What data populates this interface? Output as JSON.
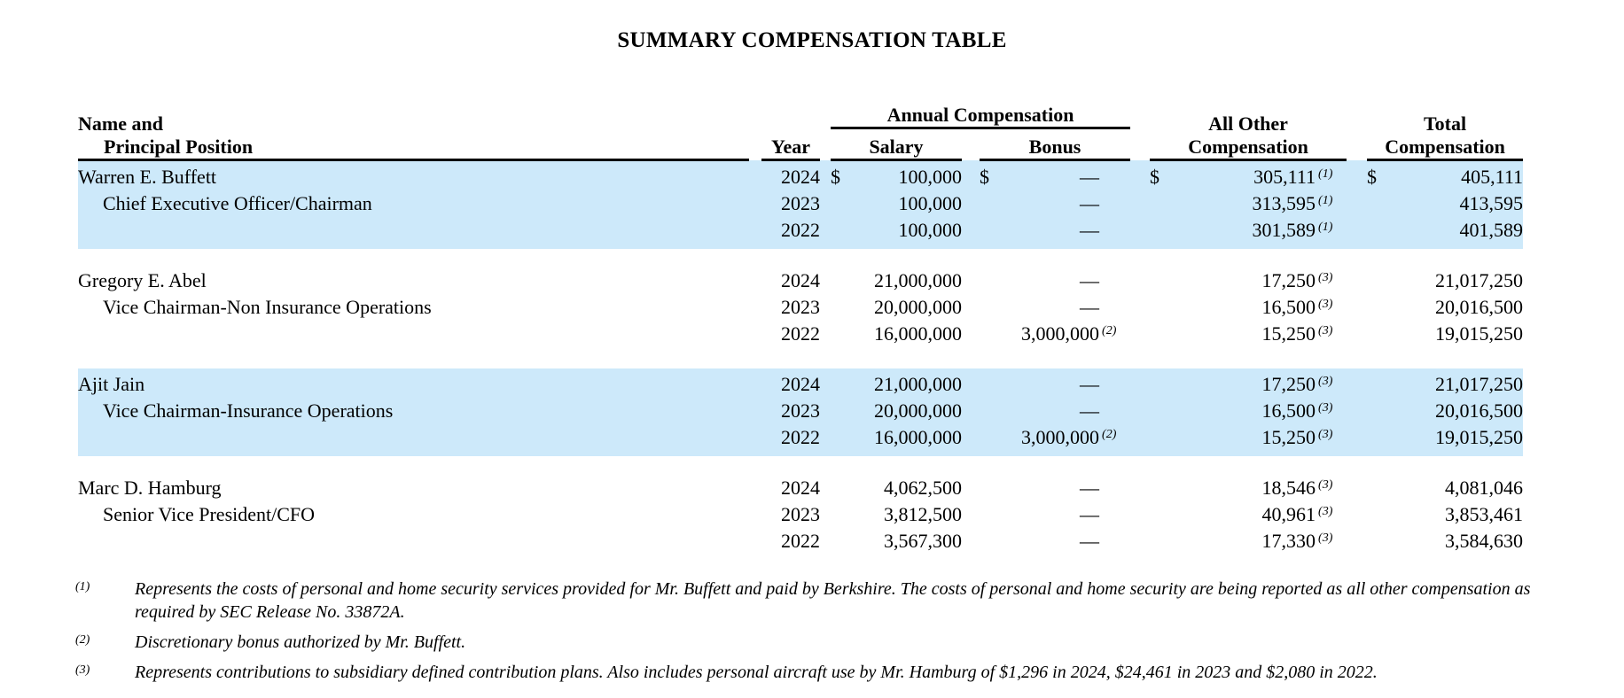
{
  "title": "SUMMARY COMPENSATION TABLE",
  "colors": {
    "highlight": "#cde9fa",
    "text": "#000000",
    "rule": "#000000"
  },
  "table": {
    "headers": {
      "name_line1": "Name and",
      "name_line2": "Principal Position",
      "year": "Year",
      "annual_compensation": "Annual Compensation",
      "salary": "Salary",
      "bonus": "Bonus",
      "all_other_line1": "All Other",
      "all_other_line2": "Compensation",
      "total_line1": "Total",
      "total_line2": "Compensation"
    },
    "groups": [
      {
        "name": "Warren E. Buffett",
        "position": "Chief Executive Officer/Chairman",
        "highlighted": true,
        "rows": [
          {
            "year": "2024",
            "salary_dollar": "$",
            "salary": "100,000",
            "bonus_dollar": "$",
            "bonus": "—",
            "bonus_note": "",
            "all_other_dollar": "$",
            "all_other": "305,111",
            "all_other_note": "(1)",
            "total_dollar": "$",
            "total": "405,111"
          },
          {
            "year": "2023",
            "salary_dollar": "",
            "salary": "100,000",
            "bonus_dollar": "",
            "bonus": "—",
            "bonus_note": "",
            "all_other_dollar": "",
            "all_other": "313,595",
            "all_other_note": "(1)",
            "total_dollar": "",
            "total": "413,595"
          },
          {
            "year": "2022",
            "salary_dollar": "",
            "salary": "100,000",
            "bonus_dollar": "",
            "bonus": "—",
            "bonus_note": "",
            "all_other_dollar": "",
            "all_other": "301,589",
            "all_other_note": "(1)",
            "total_dollar": "",
            "total": "401,589"
          }
        ]
      },
      {
        "name": "Gregory E. Abel",
        "position": "Vice Chairman-Non Insurance Operations",
        "highlighted": false,
        "rows": [
          {
            "year": "2024",
            "salary_dollar": "",
            "salary": "21,000,000",
            "bonus_dollar": "",
            "bonus": "—",
            "bonus_note": "",
            "all_other_dollar": "",
            "all_other": "17,250",
            "all_other_note": "(3)",
            "total_dollar": "",
            "total": "21,017,250"
          },
          {
            "year": "2023",
            "salary_dollar": "",
            "salary": "20,000,000",
            "bonus_dollar": "",
            "bonus": "—",
            "bonus_note": "",
            "all_other_dollar": "",
            "all_other": "16,500",
            "all_other_note": "(3)",
            "total_dollar": "",
            "total": "20,016,500"
          },
          {
            "year": "2022",
            "salary_dollar": "",
            "salary": "16,000,000",
            "bonus_dollar": "",
            "bonus": "3,000,000",
            "bonus_note": "(2)",
            "all_other_dollar": "",
            "all_other": "15,250",
            "all_other_note": "(3)",
            "total_dollar": "",
            "total": "19,015,250"
          }
        ]
      },
      {
        "name": "Ajit Jain",
        "position": "Vice Chairman-Insurance Operations",
        "highlighted": true,
        "rows": [
          {
            "year": "2024",
            "salary_dollar": "",
            "salary": "21,000,000",
            "bonus_dollar": "",
            "bonus": "—",
            "bonus_note": "",
            "all_other_dollar": "",
            "all_other": "17,250",
            "all_other_note": "(3)",
            "total_dollar": "",
            "total": "21,017,250"
          },
          {
            "year": "2023",
            "salary_dollar": "",
            "salary": "20,000,000",
            "bonus_dollar": "",
            "bonus": "—",
            "bonus_note": "",
            "all_other_dollar": "",
            "all_other": "16,500",
            "all_other_note": "(3)",
            "total_dollar": "",
            "total": "20,016,500"
          },
          {
            "year": "2022",
            "salary_dollar": "",
            "salary": "16,000,000",
            "bonus_dollar": "",
            "bonus": "3,000,000",
            "bonus_note": "(2)",
            "all_other_dollar": "",
            "all_other": "15,250",
            "all_other_note": "(3)",
            "total_dollar": "",
            "total": "19,015,250"
          }
        ]
      },
      {
        "name": "Marc D. Hamburg",
        "position": "Senior Vice President/CFO",
        "highlighted": false,
        "rows": [
          {
            "year": "2024",
            "salary_dollar": "",
            "salary": "4,062,500",
            "bonus_dollar": "",
            "bonus": "—",
            "bonus_note": "",
            "all_other_dollar": "",
            "all_other": "18,546",
            "all_other_note": "(3)",
            "total_dollar": "",
            "total": "4,081,046"
          },
          {
            "year": "2023",
            "salary_dollar": "",
            "salary": "3,812,500",
            "bonus_dollar": "",
            "bonus": "—",
            "bonus_note": "",
            "all_other_dollar": "",
            "all_other": "40,961",
            "all_other_note": "(3)",
            "total_dollar": "",
            "total": "3,853,461"
          },
          {
            "year": "2022",
            "salary_dollar": "",
            "salary": "3,567,300",
            "bonus_dollar": "",
            "bonus": "—",
            "bonus_note": "",
            "all_other_dollar": "",
            "all_other": "17,330",
            "all_other_note": "(3)",
            "total_dollar": "",
            "total": "3,584,630"
          }
        ]
      }
    ]
  },
  "footnotes": [
    {
      "marker": "(1)",
      "text": "Represents the costs of personal and home security services provided for Mr. Buffett and paid by Berkshire. The costs of personal and home security are being reported as all other compensation as required by SEC Release No. 33872A."
    },
    {
      "marker": "(2)",
      "text": "Discretionary bonus authorized by Mr. Buffett."
    },
    {
      "marker": "(3)",
      "text": "Represents contributions to subsidiary defined contribution plans. Also includes personal aircraft use by Mr. Hamburg of $1,296 in 2024, $24,461 in 2023 and $2,080 in 2022."
    }
  ]
}
